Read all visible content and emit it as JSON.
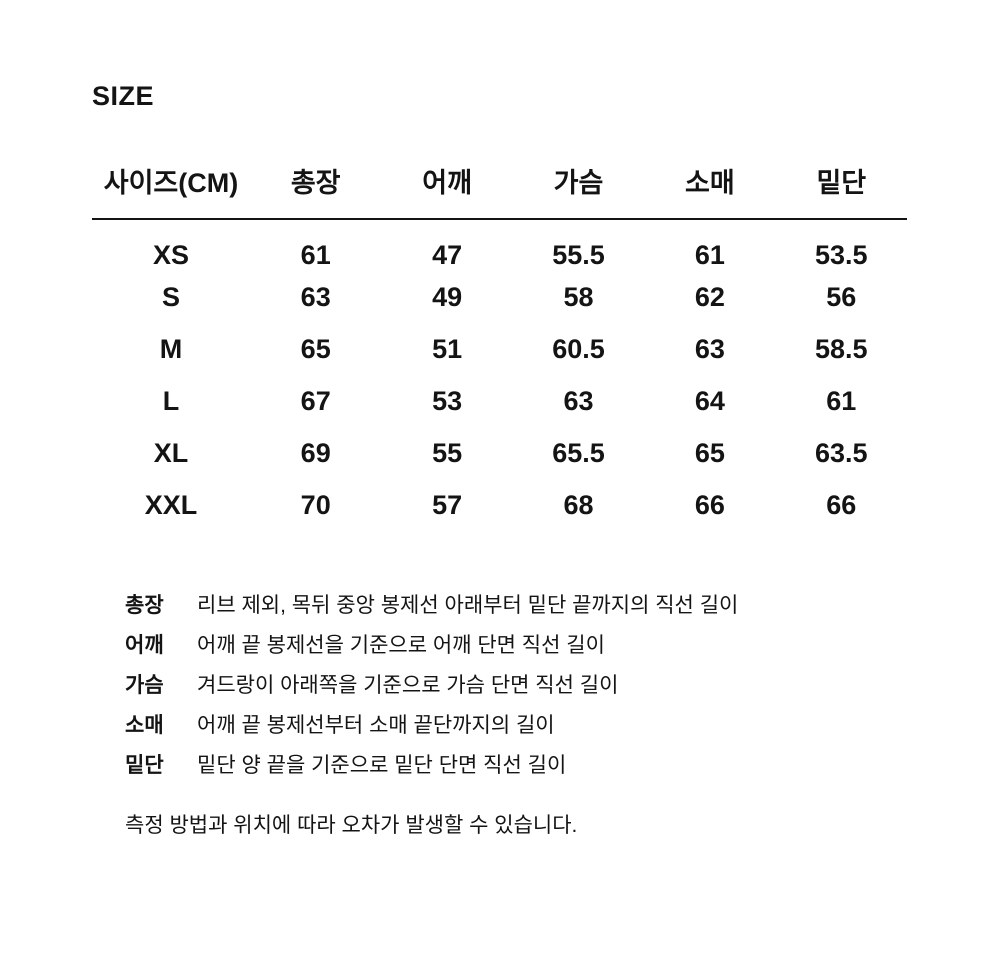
{
  "colors": {
    "text": "#141414",
    "background": "#ffffff",
    "divider": "#141414"
  },
  "section": {
    "title": "SIZE"
  },
  "chart_data": {
    "type": "table",
    "title": "SIZE",
    "columns": [
      "사이즈(CM)",
      "총장",
      "어깨",
      "가슴",
      "소매",
      "밑단"
    ],
    "rows": [
      [
        "XS",
        "61",
        "47",
        "55.5",
        "61",
        "53.5"
      ],
      [
        "S",
        "63",
        "49",
        "58",
        "62",
        "56"
      ],
      [
        "M",
        "65",
        "51",
        "60.5",
        "63",
        "58.5"
      ],
      [
        "L",
        "67",
        "53",
        "63",
        "64",
        "61"
      ],
      [
        "XL",
        "69",
        "55",
        "65.5",
        "65",
        "63.5"
      ],
      [
        "XXL",
        "70",
        "57",
        "68",
        "66",
        "66"
      ]
    ]
  },
  "definitions": [
    {
      "term": "총장",
      "description": "리브 제외, 목뒤 중앙 봉제선 아래부터 밑단 끝까지의 직선 길이"
    },
    {
      "term": "어깨",
      "description": "어깨 끝 봉제선을 기준으로 어깨 단면 직선 길이"
    },
    {
      "term": "가슴",
      "description": "겨드랑이 아래쪽을 기준으로 가슴 단면 직선 길이"
    },
    {
      "term": "소매",
      "description": "어깨 끝 봉제선부터 소매 끝단까지의 길이"
    },
    {
      "term": "밑단",
      "description": "밑단 양 끝을 기준으로 밑단 단면 직선 길이"
    }
  ],
  "footnote": "측정 방법과 위치에 따라 오차가 발생할 수 있습니다."
}
